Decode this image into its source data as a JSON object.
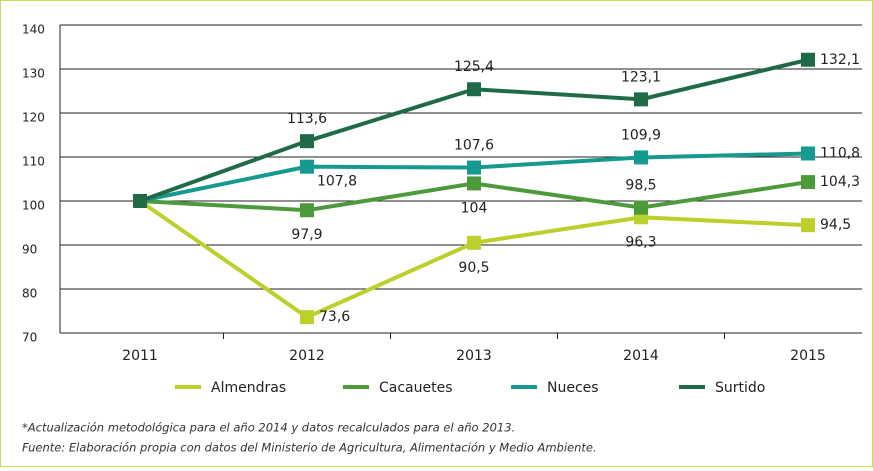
{
  "chart_data": {
    "type": "line",
    "categories": [
      "2011",
      "2012",
      "2013",
      "2014",
      "2015"
    ],
    "series": [
      {
        "name": "Almendras",
        "color": "#bccf2a",
        "values": [
          100,
          73.6,
          90.5,
          96.3,
          94.5
        ],
        "value_labels": [
          null,
          "73,6",
          "90,5",
          "96,3",
          "94,5"
        ]
      },
      {
        "name": "Cacauetes",
        "color": "#4c9a3a",
        "values": [
          100,
          97.9,
          104,
          98.5,
          104.3
        ],
        "value_labels": [
          null,
          "97,9",
          "104",
          "98,5",
          "104,3"
        ]
      },
      {
        "name": "Nueces",
        "color": "#16998f",
        "values": [
          100,
          107.8,
          107.6,
          109.9,
          110.8
        ],
        "value_labels": [
          null,
          "107,8",
          "107,6",
          "109,9",
          "110,8"
        ]
      },
      {
        "name": "Surtido",
        "color": "#1f6b47",
        "values": [
          100,
          113.6,
          125.4,
          123.1,
          132.1
        ],
        "value_labels": [
          null,
          "113,6",
          "125,4",
          "123,1",
          "132,1"
        ]
      }
    ],
    "ylim": [
      70,
      140
    ],
    "yticks": [
      70,
      80,
      90,
      100,
      110,
      120,
      130,
      140
    ],
    "grid": true,
    "legend": "bottom",
    "notes": [
      "*Actualización metodológica para el año 2014 y datos recalculados para el año 2013.",
      "Fuente: Elaboración propia con datos del Ministerio de Agricultura, Alimentación y Medio Ambiente."
    ]
  }
}
